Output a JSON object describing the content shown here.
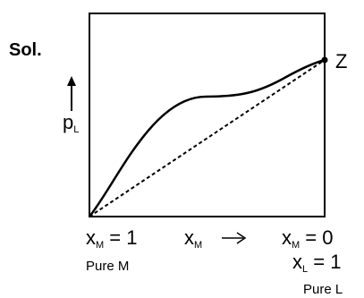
{
  "solution_label": "Sol.",
  "axis_y_variable": "p",
  "axis_y_subscript": "L",
  "point_label": "Z",
  "bottom_left": {
    "variable": "x",
    "subscript": "M",
    "value": "= 1",
    "caption": "Pure M"
  },
  "bottom_middle": {
    "variable": "x",
    "subscript": "M",
    "arrow": "→"
  },
  "bottom_right": {
    "line1": {
      "variable": "x",
      "subscript": "M",
      "value": "= 0"
    },
    "line2": {
      "variable": "x",
      "subscript": "L",
      "value": "= 1"
    },
    "caption": "Pure L"
  },
  "colors": {
    "ink": "#000000",
    "background": "#ffffff"
  },
  "icons": [
    "up-arrow-icon",
    "right-arrow-icon"
  ]
}
